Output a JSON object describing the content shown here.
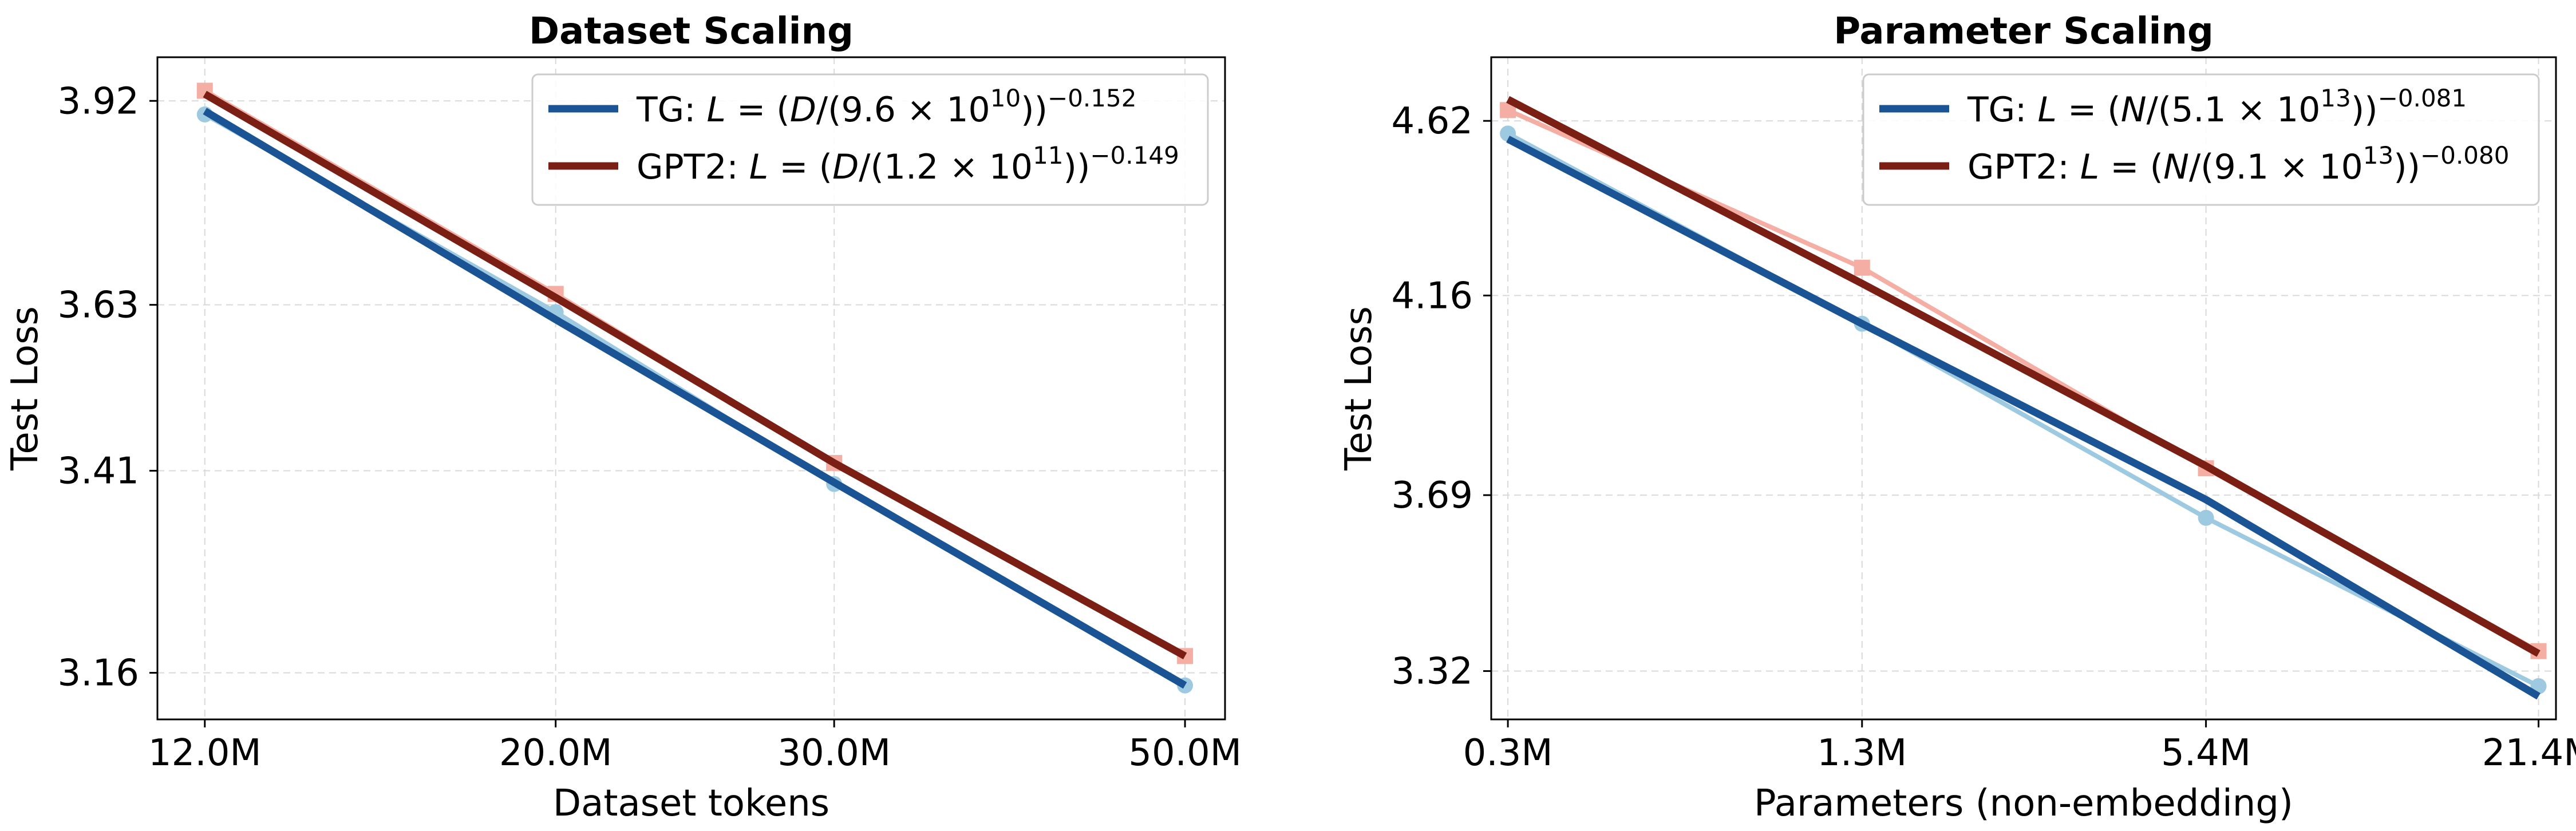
{
  "colors": {
    "tg_fit": "#1a5494",
    "tg_obs": "#9ecae1",
    "gpt2_fit": "#7b1e14",
    "gpt2_obs": "#f4aea3",
    "grid": "#d9d9d9",
    "axis": "#000000"
  },
  "chart_data": [
    {
      "type": "line",
      "title": "Dataset Scaling",
      "xlabel": "Dataset tokens",
      "ylabel": "Test Loss",
      "x_scale": "log",
      "y_scale": "log",
      "xlim": [
        11.2,
        53.0
      ],
      "ylim": [
        3.105,
        3.985
      ],
      "x": [
        12.0,
        20.0,
        30.0,
        50.0
      ],
      "x_tick_labels": [
        "12.0M",
        "20.0M",
        "30.0M",
        "50.0M"
      ],
      "y_ticks": [
        3.16,
        3.41,
        3.63,
        3.92
      ],
      "y_tick_labels": [
        "3.16",
        "3.41",
        "3.63",
        "3.92"
      ],
      "grid": true,
      "legend_position": "top-right",
      "series": [
        {
          "name": "TG",
          "role": "observed",
          "marker": "circle",
          "color_key": "tg_obs",
          "values": [
            3.9,
            3.62,
            3.393,
            3.145
          ]
        },
        {
          "name": "GPT2",
          "role": "observed",
          "marker": "square",
          "color_key": "gpt2_obs",
          "values": [
            3.935,
            3.645,
            3.42,
            3.18
          ]
        },
        {
          "name": "TG",
          "role": "fit",
          "color_key": "tg_fit",
          "values": [
            3.905,
            3.61,
            3.395,
            3.145
          ],
          "legend": {
            "prefix": "TG: ",
            "L": "L",
            "eq": " = (",
            "var": "D",
            "coef": "/(9.6 × 10",
            "exp": "10",
            "close": "))",
            "power": "−0.152"
          }
        },
        {
          "name": "GPT2",
          "role": "fit",
          "color_key": "gpt2_fit",
          "values": [
            3.93,
            3.64,
            3.42,
            3.18
          ],
          "legend": {
            "prefix": "GPT2: ",
            "L": "L",
            "eq": " = (",
            "var": "D",
            "coef": "/(1.2 × 10",
            "exp": "11",
            "close": "))",
            "power": "−0.149"
          }
        }
      ]
    },
    {
      "type": "line",
      "title": "Parameter Scaling",
      "xlabel": "Parameters (non-embedding)",
      "ylabel": "Test Loss",
      "x_scale": "log",
      "y_scale": "log",
      "xlim": [
        0.28,
        23.0
      ],
      "ylim": [
        3.225,
        4.8
      ],
      "x": [
        0.3,
        1.3,
        5.4,
        21.4
      ],
      "x_tick_labels": [
        "0.3M",
        "1.3M",
        "5.4M",
        "21.4M"
      ],
      "y_ticks": [
        3.32,
        3.69,
        4.16,
        4.62
      ],
      "y_tick_labels": [
        "3.32",
        "3.69",
        "4.16",
        "4.62"
      ],
      "grid": true,
      "legend_position": "top-right",
      "series": [
        {
          "name": "TG",
          "role": "observed",
          "marker": "circle",
          "color_key": "tg_obs",
          "values": [
            4.585,
            4.09,
            3.64,
            3.29
          ]
        },
        {
          "name": "GPT2",
          "role": "observed",
          "marker": "square",
          "color_key": "gpt2_obs",
          "values": [
            4.65,
            4.23,
            3.75,
            3.36
          ]
        },
        {
          "name": "TG",
          "role": "fit",
          "color_key": "tg_fit",
          "values": [
            4.57,
            4.09,
            3.68,
            3.27
          ],
          "legend": {
            "prefix": "TG: ",
            "L": "L",
            "eq": " = (",
            "var": "N",
            "coef": "/(5.1 × 10",
            "exp": "13",
            "close": "))",
            "power": "−0.081"
          }
        },
        {
          "name": "GPT2",
          "role": "fit",
          "color_key": "gpt2_fit",
          "values": [
            4.68,
            4.19,
            3.755,
            3.355
          ],
          "legend": {
            "prefix": "GPT2: ",
            "L": "L",
            "eq": " = (",
            "var": "N",
            "coef": "/(9.1 × 10",
            "exp": "13",
            "close": "))",
            "power": "−0.080"
          }
        }
      ]
    }
  ]
}
